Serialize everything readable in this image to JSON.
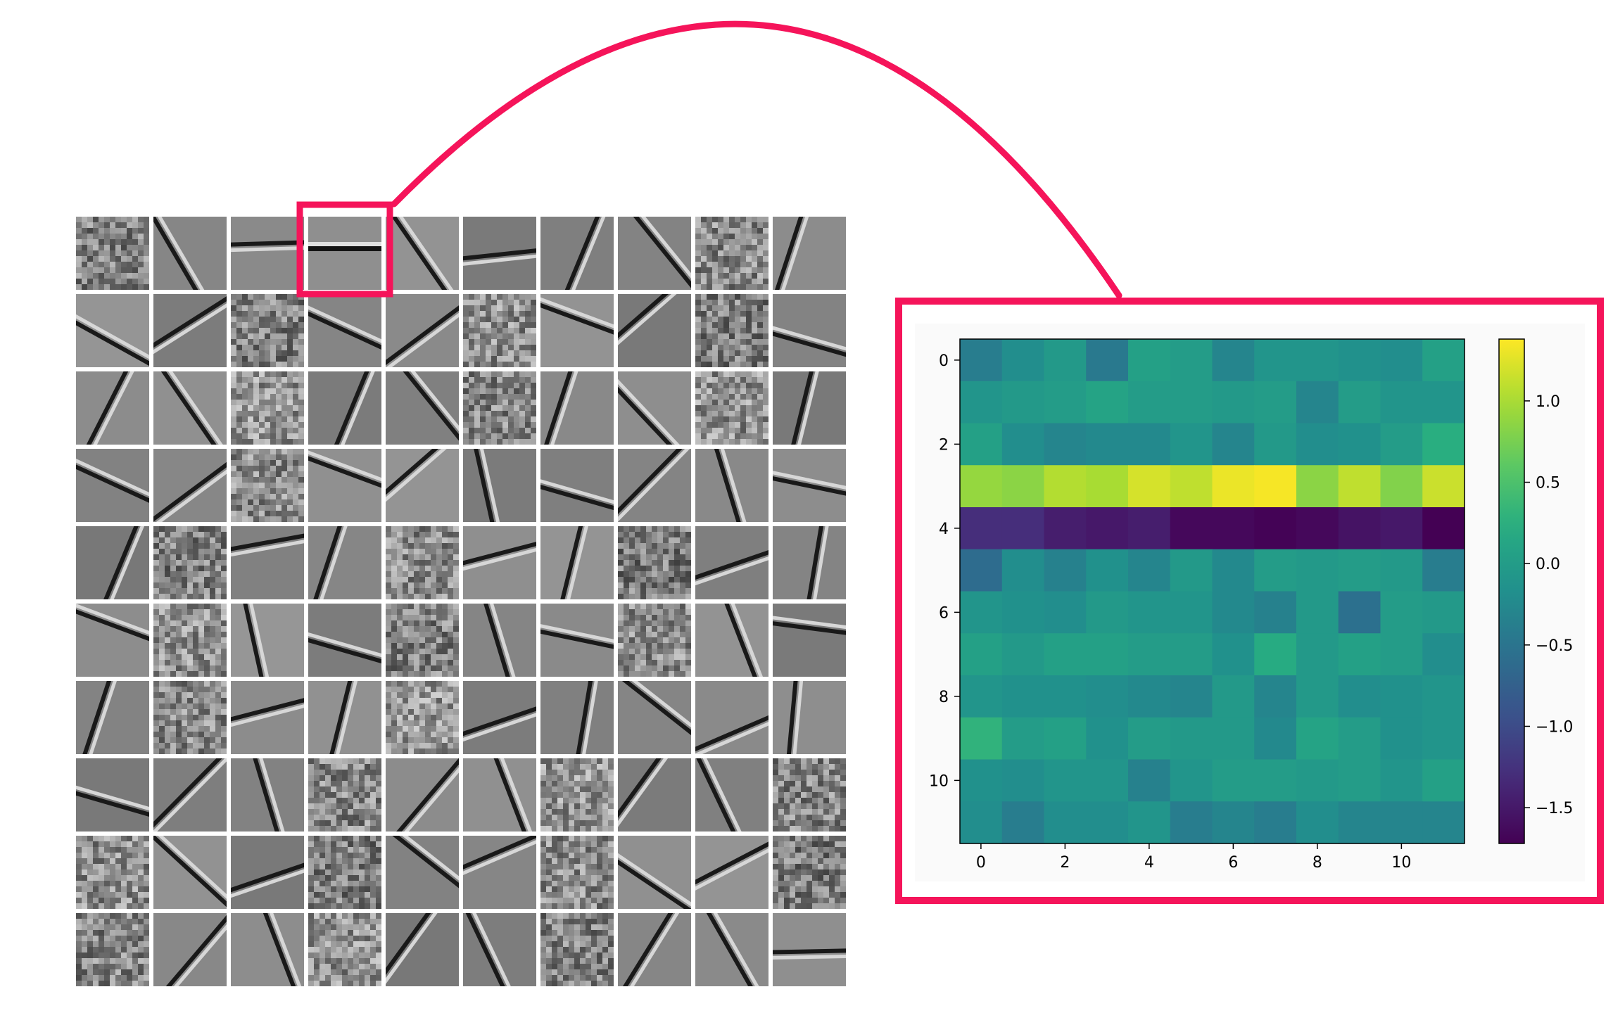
{
  "filter_grid": {
    "rows": 10,
    "cols": 10,
    "highlighted": {
      "row": 0,
      "col": 3
    },
    "highlight_color": "#F5145A"
  },
  "chart_data": {
    "type": "heatmap",
    "title": "",
    "xlabel": "",
    "ylabel": "",
    "colormap": "viridis",
    "x_ticks": [
      0,
      2,
      4,
      6,
      8,
      10
    ],
    "y_ticks": [
      0,
      2,
      4,
      6,
      8,
      10
    ],
    "colorbar_ticks": [
      1.0,
      0.5,
      0.0,
      -0.5,
      -1.0,
      -1.5
    ],
    "colorbar_tick_labels": [
      "1.0",
      "0.5",
      "0.0",
      "−0.5",
      "−1.0",
      "−1.5"
    ],
    "vmin": -1.72,
    "vmax": 1.38,
    "values": [
      [
        -0.4,
        -0.2,
        -0.05,
        -0.45,
        0.05,
        0.0,
        -0.3,
        -0.1,
        -0.1,
        -0.15,
        -0.2,
        0.05
      ],
      [
        -0.1,
        -0.05,
        0.0,
        0.1,
        0.0,
        0.0,
        -0.05,
        0.0,
        -0.3,
        0.0,
        -0.1,
        -0.1
      ],
      [
        0.05,
        -0.2,
        -0.3,
        -0.25,
        -0.25,
        -0.1,
        -0.3,
        -0.05,
        -0.2,
        -0.15,
        0.0,
        0.25
      ],
      [
        0.9,
        0.85,
        1.05,
        1.0,
        1.2,
        1.1,
        1.3,
        1.35,
        0.85,
        1.1,
        0.8,
        1.15
      ],
      [
        -1.3,
        -1.3,
        -1.45,
        -1.5,
        -1.45,
        -1.65,
        -1.65,
        -1.7,
        -1.65,
        -1.55,
        -1.5,
        -1.72
      ],
      [
        -0.6,
        -0.2,
        -0.35,
        -0.15,
        -0.3,
        -0.05,
        -0.25,
        0.0,
        -0.05,
        0.0,
        -0.05,
        -0.4
      ],
      [
        -0.1,
        -0.15,
        -0.2,
        -0.05,
        -0.1,
        -0.1,
        -0.25,
        -0.35,
        -0.05,
        -0.55,
        0.0,
        -0.05
      ],
      [
        0.05,
        -0.05,
        0.05,
        0.05,
        0.0,
        0.0,
        -0.15,
        0.2,
        -0.05,
        0.05,
        0.0,
        -0.2
      ],
      [
        -0.1,
        -0.15,
        -0.15,
        -0.2,
        -0.25,
        -0.3,
        -0.05,
        -0.3,
        -0.05,
        -0.2,
        -0.15,
        -0.1
      ],
      [
        0.3,
        0.0,
        0.05,
        -0.15,
        0.0,
        -0.05,
        -0.05,
        -0.25,
        0.1,
        0.0,
        -0.15,
        -0.1
      ],
      [
        -0.15,
        -0.2,
        -0.1,
        -0.1,
        -0.35,
        -0.1,
        0.0,
        0.0,
        -0.05,
        0.0,
        -0.1,
        0.05
      ],
      [
        -0.2,
        -0.4,
        -0.2,
        -0.2,
        -0.1,
        -0.4,
        -0.3,
        -0.4,
        -0.2,
        -0.3,
        -0.3,
        -0.3
      ]
    ]
  }
}
